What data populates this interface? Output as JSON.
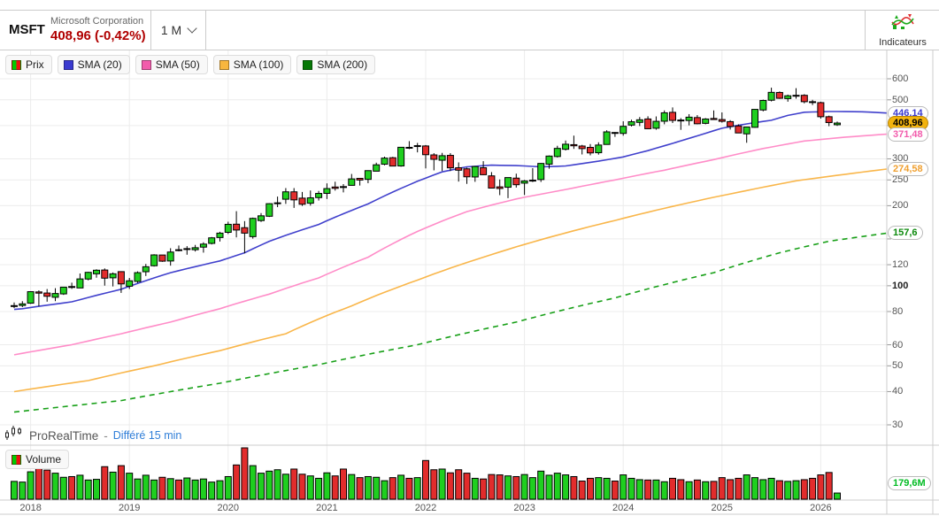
{
  "header": {
    "symbol": "MSFT",
    "company": "Microsoft Corporation",
    "price_line": "408,96 (-0,42%)",
    "price_color": "#b00000",
    "timeframe": "1 M",
    "indicators_label": "Indicateurs"
  },
  "legend": {
    "items": [
      {
        "label": "Prix",
        "icon": "candle-swatch",
        "up_color": "#00cc00",
        "down_color": "#ee1111"
      },
      {
        "label": "SMA (20)",
        "color": "#3a3ad0"
      },
      {
        "label": "SMA (50)",
        "color": "#f25cac"
      },
      {
        "label": "SMA (100)",
        "color": "#f7b63e"
      },
      {
        "label": "SMA (200)",
        "color": "#067806"
      }
    ]
  },
  "watermark": {
    "brand": "ProRealTime",
    "separator": "-",
    "delay_text": "Différé 15 min",
    "delay_color": "#2f7ed8"
  },
  "volume_panel": {
    "legend_label": "Volume",
    "last_volume_label": "179,6M",
    "last_volume_color": "#00bb22"
  },
  "y_axis": {
    "scale": "log",
    "labeled_ticks": [
      600,
      500,
      300,
      250,
      200,
      120,
      100,
      80,
      60,
      50,
      40,
      30
    ],
    "hidden_ticks": [
      400,
      150
    ],
    "bold_tick": 100
  },
  "x_axis": {
    "years": [
      "2018",
      "2019",
      "2020",
      "2021",
      "2022",
      "2023",
      "2024",
      "2025",
      "2026"
    ]
  },
  "price_badges": [
    {
      "label": "446,14",
      "value": 446.14,
      "series": "SMA (20)",
      "text_color": "#3a3ad0",
      "bg": "#ffffff",
      "border": "#bbbbbb"
    },
    {
      "label": "408,96",
      "value": 408.96,
      "series": "dernier cours",
      "text_color": "#000000",
      "bg": "#f2b30e",
      "border": "#b8860b"
    },
    {
      "label": "371,48",
      "value": 371.48,
      "series": "SMA (50)",
      "text_color": "#f25cac",
      "bg": "#ffffff",
      "border": "#bbbbbb"
    },
    {
      "label": "274,58",
      "value": 274.58,
      "series": "SMA (100)",
      "text_color": "#f0a030",
      "bg": "#ffffff",
      "border": "#bbbbbb"
    },
    {
      "label": "157,6",
      "value": 157.6,
      "series": "SMA (200)",
      "text_color": "#0c8a0c",
      "bg": "#ffffff",
      "border": "#bbbbbb"
    }
  ],
  "chart_data": {
    "type": "candlestick",
    "title": "MSFT monthly candlesticks with SMA 20/50/100/200 overlays and volume",
    "x_unit": "month",
    "y_scale": "log",
    "ylim": [
      28,
      780
    ],
    "volume_unit": "millions of shares",
    "volume_max_scale": 1500,
    "colors": {
      "up": "#1fcf1f",
      "down": "#e22c2c",
      "outline": "#000000",
      "grid": "#ececec",
      "border": "#cccccc",
      "tick": "#999999"
    },
    "candles_ohlcv": [
      [
        "2017-11",
        84,
        86.5,
        82.4,
        84.2,
        520
      ],
      [
        "2017-12",
        84.3,
        87.5,
        83.1,
        85.5,
        500
      ],
      [
        "2018-01",
        86,
        95.4,
        85.5,
        95,
        800
      ],
      [
        "2018-02",
        94.8,
        96.1,
        83.8,
        93.8,
        900
      ],
      [
        "2018-03",
        93.9,
        97.2,
        87.1,
        91.3,
        850
      ],
      [
        "2018-04",
        90.5,
        97.9,
        87.5,
        93.5,
        760
      ],
      [
        "2018-05",
        93.2,
        99,
        92.4,
        98.8,
        640
      ],
      [
        "2018-06",
        99.3,
        102.7,
        97.3,
        98.6,
        660
      ],
      [
        "2018-07",
        98.1,
        111.2,
        98,
        106.1,
        700
      ],
      [
        "2018-08",
        106,
        112.8,
        104.8,
        112.3,
        560
      ],
      [
        "2018-09",
        110.9,
        115.3,
        107.2,
        114.4,
        580
      ],
      [
        "2018-10",
        114.6,
        116.2,
        100.1,
        106.8,
        950
      ],
      [
        "2018-11",
        107.1,
        112.2,
        99.4,
        110.9,
        790
      ],
      [
        "2018-12",
        113,
        113.4,
        94,
        101.6,
        980
      ],
      [
        "2019-01",
        99.6,
        107,
        97.2,
        104.4,
        760
      ],
      [
        "2019-02",
        103.8,
        113.2,
        102.6,
        112,
        590
      ],
      [
        "2019-03",
        112.9,
        120.8,
        108.8,
        117.9,
        700
      ],
      [
        "2019-04",
        118.9,
        131.4,
        118.1,
        130.6,
        560
      ],
      [
        "2019-05",
        130.5,
        130.6,
        123,
        123.7,
        640
      ],
      [
        "2019-06",
        123.9,
        138.4,
        119,
        133.9,
        600
      ],
      [
        "2019-07",
        136.6,
        141.7,
        134.7,
        136.3,
        560
      ],
      [
        "2019-08",
        137,
        140.9,
        130.8,
        137.9,
        620
      ],
      [
        "2019-09",
        136.6,
        142.4,
        134.5,
        139,
        560
      ],
      [
        "2019-10",
        139.7,
        145.7,
        133.2,
        143.4,
        590
      ],
      [
        "2019-11",
        144.3,
        152.5,
        143,
        151.4,
        500
      ],
      [
        "2019-12",
        151.8,
        159.6,
        146.6,
        157.7,
        540
      ],
      [
        "2020-01",
        158.8,
        174.1,
        156.5,
        170.2,
        660
      ],
      [
        "2020-02",
        170.4,
        190.7,
        152,
        162,
        1000
      ],
      [
        "2020-03",
        165.3,
        175,
        132.5,
        157.7,
        1500
      ],
      [
        "2020-04",
        153,
        180.4,
        150.4,
        179.2,
        980
      ],
      [
        "2020-05",
        175.8,
        187.5,
        173.8,
        183.2,
        760
      ],
      [
        "2020-06",
        182.5,
        204.4,
        181.4,
        203.5,
        820
      ],
      [
        "2020-07",
        203.9,
        216.4,
        197.5,
        205,
        860
      ],
      [
        "2020-08",
        211.5,
        232.9,
        203.1,
        225.5,
        730
      ],
      [
        "2020-09",
        225.5,
        232.9,
        196.2,
        210.3,
        880
      ],
      [
        "2020-10",
        213.5,
        225.2,
        199.6,
        202.5,
        730
      ],
      [
        "2020-11",
        204.3,
        228.1,
        200.1,
        214.1,
        680
      ],
      [
        "2020-12",
        214.5,
        227.2,
        209.1,
        222.4,
        610
      ],
      [
        "2021-01",
        222.5,
        242.6,
        211.9,
        231.9,
        770
      ],
      [
        "2021-02",
        235.1,
        246.1,
        227.9,
        232.4,
        680
      ],
      [
        "2021-03",
        235.9,
        241.1,
        224.3,
        235.8,
        880
      ],
      [
        "2021-04",
        238.5,
        263.2,
        238.1,
        252.2,
        720
      ],
      [
        "2021-05",
        253.4,
        254.3,
        238.1,
        249.7,
        630
      ],
      [
        "2021-06",
        251.2,
        271.6,
        243,
        270.9,
        660
      ],
      [
        "2021-07",
        269.6,
        290.2,
        269.6,
        284.9,
        640
      ],
      [
        "2021-08",
        286.4,
        305.8,
        283.7,
        301.9,
        540
      ],
      [
        "2021-09",
        302.9,
        305.3,
        281.6,
        281.9,
        630
      ],
      [
        "2021-10",
        282.1,
        332,
        280.3,
        331.6,
        700
      ],
      [
        "2021-11",
        331.4,
        349.7,
        326.4,
        330.6,
        610
      ],
      [
        "2021-12",
        335.1,
        344.3,
        317.3,
        336.3,
        630
      ],
      [
        "2022-01",
        335.4,
        338,
        276.1,
        311,
        1130
      ],
      [
        "2022-02",
        310.4,
        315.1,
        271.5,
        298.8,
        860
      ],
      [
        "2022-03",
        296.4,
        315.9,
        270,
        308.3,
        880
      ],
      [
        "2022-04",
        309.2,
        315.1,
        270,
        277.5,
        770
      ],
      [
        "2022-05",
        277.7,
        290.9,
        246.4,
        271.9,
        860
      ],
      [
        "2022-06",
        275.2,
        277.7,
        241.5,
        256.8,
        760
      ],
      [
        "2022-07",
        256.4,
        282,
        245.9,
        280.7,
        610
      ],
      [
        "2022-08",
        277.8,
        294,
        260.7,
        261.5,
        590
      ],
      [
        "2022-09",
        258.9,
        267.5,
        232.7,
        232.9,
        720
      ],
      [
        "2022-10",
        235.4,
        251,
        219.1,
        232.1,
        710
      ],
      [
        "2022-11",
        234.6,
        255.3,
        213.4,
        255.1,
        680
      ],
      [
        "2022-12",
        253.9,
        263.9,
        233.9,
        239.8,
        660
      ],
      [
        "2023-01",
        243.1,
        249.8,
        219.4,
        247.8,
        720
      ],
      [
        "2023-02",
        248,
        276.8,
        245.5,
        249.4,
        630
      ],
      [
        "2023-03",
        250.8,
        289.3,
        245.6,
        288.3,
        820
      ],
      [
        "2023-04",
        286.5,
        308.9,
        275.4,
        307.3,
        700
      ],
      [
        "2023-05",
        306,
        335.9,
        303.4,
        328.4,
        760
      ],
      [
        "2023-06",
        325.9,
        351.5,
        322.5,
        340.5,
        710
      ],
      [
        "2023-07",
        339.2,
        366.8,
        327,
        335.9,
        660
      ],
      [
        "2023-08",
        335.2,
        338.5,
        311.6,
        327.8,
        530
      ],
      [
        "2023-09",
        331.3,
        340.9,
        309.4,
        315.8,
        610
      ],
      [
        "2023-10",
        316.3,
        346.2,
        311.2,
        338.1,
        630
      ],
      [
        "2023-11",
        339.8,
        384.3,
        339.6,
        378.9,
        610
      ],
      [
        "2023-12",
        376.8,
        378.2,
        362.9,
        376,
        530
      ],
      [
        "2024-01",
        373.9,
        415.3,
        366.5,
        397.6,
        710
      ],
      [
        "2024-02",
        401.8,
        420.8,
        397.2,
        413.6,
        610
      ],
      [
        "2024-03",
        411.3,
        430.8,
        398.4,
        420.7,
        570
      ],
      [
        "2024-04",
        423.7,
        433.6,
        388,
        389.3,
        560
      ],
      [
        "2024-05",
        391,
        433.1,
        386,
        415.1,
        560
      ],
      [
        "2024-06",
        415.5,
        456.2,
        404.5,
        446.9,
        510
      ],
      [
        "2024-07",
        448.7,
        468.4,
        408.9,
        418.4,
        610
      ],
      [
        "2024-08",
        419.7,
        426.8,
        385.6,
        417.1,
        570
      ],
      [
        "2024-09",
        417.9,
        441.8,
        400.8,
        430.3,
        510
      ],
      [
        "2024-10",
        428.8,
        438,
        404.4,
        406.4,
        560
      ],
      [
        "2024-11",
        407.9,
        426.9,
        404.5,
        423.5,
        510
      ],
      [
        "2024-12",
        425.5,
        456.2,
        420.7,
        421.5,
        520
      ],
      [
        "2025-01",
        421.5,
        448.4,
        410.6,
        415.1,
        630
      ],
      [
        "2025-02",
        414,
        419.3,
        386.6,
        397,
        570
      ],
      [
        "2025-03",
        398.8,
        404.4,
        376.9,
        375.4,
        610
      ],
      [
        "2025-04",
        372.5,
        395.6,
        344.8,
        395.3,
        710
      ],
      [
        "2025-05",
        394.1,
        461,
        392.6,
        460.4,
        630
      ],
      [
        "2025-06",
        458,
        500.8,
        452.6,
        497.4,
        570
      ],
      [
        "2025-07",
        498.3,
        555.5,
        493.2,
        533.5,
        610
      ],
      [
        "2025-08",
        533,
        537.6,
        504.2,
        506.7,
        540
      ],
      [
        "2025-09",
        505.4,
        523,
        492,
        517.9,
        520
      ],
      [
        "2025-10",
        518,
        553,
        505,
        520,
        540
      ],
      [
        "2025-11",
        520,
        525,
        485,
        492,
        570
      ],
      [
        "2025-12",
        492,
        500,
        478,
        490,
        610
      ],
      [
        "2026-01",
        488,
        492,
        425,
        432,
        710
      ],
      [
        "2026-02",
        432,
        436,
        398,
        410.7,
        780
      ],
      [
        "2026-03",
        403,
        414,
        399,
        408.96,
        179.6
      ]
    ],
    "sma_overlays": [
      {
        "name": "SMA (20)",
        "color": "#4040cc",
        "style": "solid",
        "points": [
          [
            0,
            81.5
          ],
          [
            1,
            82
          ],
          [
            7,
            87
          ],
          [
            13,
            97
          ],
          [
            19,
            112
          ],
          [
            25,
            124
          ],
          [
            28,
            133
          ],
          [
            31,
            147
          ],
          [
            37,
            170
          ],
          [
            43,
            203
          ],
          [
            49,
            247
          ],
          [
            52,
            268
          ],
          [
            55,
            280
          ],
          [
            58,
            284
          ],
          [
            61,
            283
          ],
          [
            64,
            280
          ],
          [
            67,
            282
          ],
          [
            71,
            294
          ],
          [
            74,
            305
          ],
          [
            77,
            322
          ],
          [
            80,
            343
          ],
          [
            83,
            366
          ],
          [
            86,
            391
          ],
          [
            89,
            406
          ],
          [
            92,
            419
          ],
          [
            94,
            437
          ],
          [
            96,
            449
          ],
          [
            99,
            452
          ],
          [
            103,
            451
          ],
          [
            106,
            446.14
          ]
        ]
      },
      {
        "name": "SMA (50)",
        "color": "#ff8cc8",
        "style": "solid",
        "points": [
          [
            0,
            55
          ],
          [
            7,
            60
          ],
          [
            13,
            66
          ],
          [
            19,
            73
          ],
          [
            25,
            82
          ],
          [
            31,
            93
          ],
          [
            37,
            107
          ],
          [
            43,
            128
          ],
          [
            49,
            160
          ],
          [
            55,
            190
          ],
          [
            61,
            212
          ],
          [
            67,
            230
          ],
          [
            73,
            250
          ],
          [
            79,
            272
          ],
          [
            85,
            298
          ],
          [
            91,
            328
          ],
          [
            96,
            350
          ],
          [
            101,
            362
          ],
          [
            106,
            371.48
          ]
        ]
      },
      {
        "name": "SMA (100)",
        "color": "#f9b64a",
        "style": "solid",
        "points": [
          [
            0,
            40
          ],
          [
            9,
            44
          ],
          [
            17,
            50
          ],
          [
            25,
            57
          ],
          [
            33,
            66
          ],
          [
            41,
            84
          ],
          [
            49,
            105
          ],
          [
            57,
            128
          ],
          [
            65,
            152
          ],
          [
            73,
            176
          ],
          [
            81,
            202
          ],
          [
            89,
            228
          ],
          [
            95,
            248
          ],
          [
            106,
            274.58
          ]
        ]
      },
      {
        "name": "SMA (200)",
        "color": "#18a018",
        "style": "dashed",
        "points": [
          [
            0,
            33.5
          ],
          [
            13,
            37
          ],
          [
            25,
            43
          ],
          [
            37,
            50.5
          ],
          [
            49,
            60
          ],
          [
            61,
            73
          ],
          [
            73,
            90
          ],
          [
            85,
            112
          ],
          [
            93,
            133
          ],
          [
            99,
            147
          ],
          [
            106,
            157.6
          ]
        ]
      }
    ]
  }
}
